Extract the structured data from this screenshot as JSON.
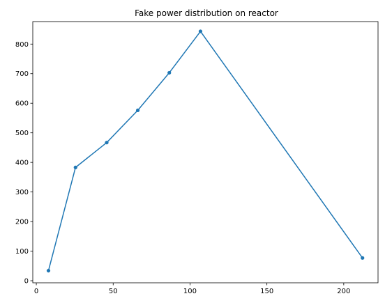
{
  "chart_data": {
    "type": "line",
    "title": "Fake power distribution on reactor",
    "xlabel": "",
    "ylabel": "",
    "xlim": [
      -2.3,
      222.3
    ],
    "ylim": [
      -7,
      876
    ],
    "x_ticks": [
      0,
      50,
      100,
      150,
      200
    ],
    "y_ticks": [
      0,
      100,
      200,
      300,
      400,
      500,
      600,
      700,
      800
    ],
    "grid": false,
    "legend": "none",
    "series": [
      {
        "color": "#1f77b4",
        "marker": "circle",
        "points": [
          {
            "x": 7.9,
            "y": 34
          },
          {
            "x": 25.5,
            "y": 383
          },
          {
            "x": 45.8,
            "y": 467
          },
          {
            "x": 66.0,
            "y": 576
          },
          {
            "x": 86.5,
            "y": 703
          },
          {
            "x": 106.8,
            "y": 843
          },
          {
            "x": 212.2,
            "y": 77
          }
        ]
      }
    ]
  }
}
